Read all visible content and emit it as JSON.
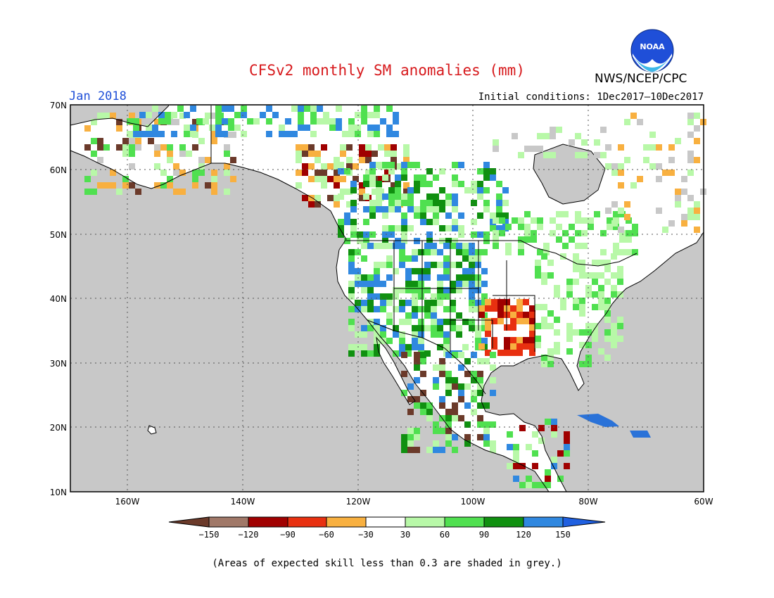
{
  "title": "CFSv2 monthly SM anomalies (mm)",
  "agency": "NWS/NCEP/CPC",
  "valid_month": "Jan 2018",
  "initial_conditions": "Initial conditions: 1Dec2017–10Dec2017",
  "footnote": "(Areas of expected skill less than 0.3 are shaded in grey.)",
  "logo_text": "NOAA",
  "map": {
    "lat_labels": [
      "70N",
      "60N",
      "50N",
      "40N",
      "30N",
      "20N",
      "10N"
    ],
    "lon_labels": [
      "160W",
      "140W",
      "120W",
      "100W",
      "80W",
      "60W"
    ],
    "ocean_color": "#c8c8c8",
    "land_color": "#ffffff"
  },
  "legend": {
    "labels": [
      "−150",
      "−120",
      "−90",
      "−60",
      "−30",
      "30",
      "60",
      "90",
      "120",
      "150"
    ],
    "colors": [
      "#6b3a2a",
      "#a07868",
      "#a00000",
      "#e83010",
      "#f8b040",
      "#ffffff",
      "#b8f8a8",
      "#50e050",
      "#109010",
      "#3088e0",
      "#2060e0"
    ]
  },
  "colors": {
    "dry_extreme": "#6b3a2a",
    "dry_strong": "#a00000",
    "dry_mid": "#e83010",
    "dry_light": "#f8b040",
    "wet_light": "#b8f8a8",
    "wet_mid": "#50e050",
    "wet_strong": "#109010",
    "wet_extreme": "#3088e0"
  }
}
